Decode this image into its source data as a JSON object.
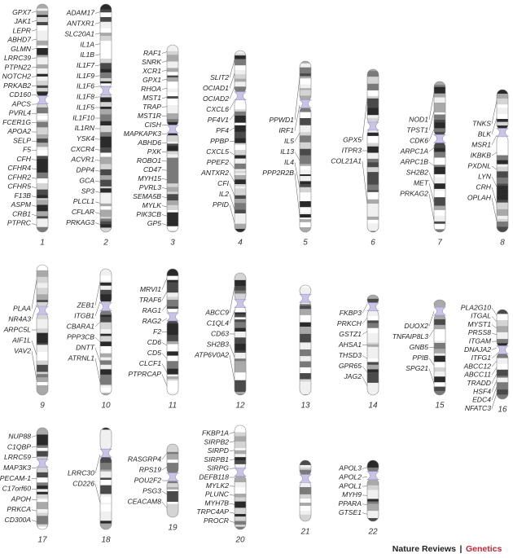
{
  "chromosomes": [
    {
      "label": "1",
      "genes": [
        "GPX7",
        "JAK1",
        "LEPR",
        "ABHD7",
        "GLMN",
        "LRRC39",
        "PTPN22",
        "NOTCH2",
        "PRKAB2",
        "CD160",
        "APCS",
        "PVRL4",
        "FCER1G",
        "APOA2",
        "SELP",
        "F5",
        "CFH",
        "CFHR4",
        "CFHR2",
        "CFHR5",
        "F13B",
        "ASPM",
        "CRB1",
        "PTPRC"
      ]
    },
    {
      "label": "2",
      "genes": [
        "ADAM17",
        "ANTXR1",
        "SLC20A1",
        "IL1A",
        "IL1B",
        "IL1F7",
        "IL1F9",
        "IL1F6",
        "IL1F8",
        "IL1F5",
        "IL1F10",
        "IL1RN",
        "YSK4",
        "CXCR4",
        "ACVR1",
        "DPP4",
        "GCA",
        "SP3",
        "PLCL1",
        "CFLAR",
        "PRKAG3"
      ]
    },
    {
      "label": "3",
      "genes": [
        "RAF1",
        "SNRK",
        "XCR1",
        "GPX1",
        "RHOA",
        "MST1",
        "TRAP",
        "MST1R",
        "CISH",
        "MAPKAPK3",
        "ABHD6",
        "PXK",
        "ROBO1",
        "CD47",
        "MYH15",
        "PVRL3",
        "SEMA5B",
        "MYLK",
        "PIK3CB",
        "GP5"
      ]
    },
    {
      "label": "4",
      "genes": [
        "SLIT2",
        "OCIAD1",
        "OCIAD2",
        "CXCL6",
        "PF4V1",
        "PF4",
        "PPBP",
        "CXCL5",
        "PPEF2",
        "ANTXR2",
        "CFI",
        "IL2",
        "PPID"
      ]
    },
    {
      "label": "5",
      "genes": [
        "PPWD1",
        "IRF1",
        "IL5",
        "IL13",
        "IL4",
        "PPP2R2B"
      ]
    },
    {
      "label": "6",
      "genes": [
        "GPX5",
        "ITPR3",
        "COL21A1"
      ]
    },
    {
      "label": "7",
      "genes": [
        "NOD1",
        "TPST1",
        "CDK6",
        "ARPC1A",
        "ARPC1B",
        "SH2B2",
        "MET",
        "PRKAG2"
      ]
    },
    {
      "label": "8",
      "genes": [
        "TNKS",
        "BLK",
        "MSR1",
        "IKBKB",
        "PXDNL",
        "LYN",
        "CRH",
        "OPLAH"
      ]
    },
    {
      "label": "9",
      "genes": [
        "PLAA",
        "NR4A3",
        "ARPC5L",
        "AIF1L",
        "VAV2"
      ]
    },
    {
      "label": "10",
      "genes": [
        "ZEB1",
        "ITGB1",
        "CBARA1",
        "PPP3CB",
        "DNTT",
        "ATRNL1"
      ]
    },
    {
      "label": "11",
      "genes": [
        "MRVI1",
        "TRAF6",
        "RAG1",
        "RAG2",
        "F2",
        "CD6",
        "CD5",
        "CLCF1",
        "PTPRCAP"
      ]
    },
    {
      "label": "12",
      "genes": [
        "ABCC9",
        "C1QL4",
        "CD63",
        "SH2B3",
        "ATP6V0A2"
      ]
    },
    {
      "label": "13",
      "genes": []
    },
    {
      "label": "14",
      "genes": [
        "FKBP3",
        "PRKCH",
        "GSTZ1",
        "AHSA1",
        "THSD3",
        "GPR65",
        "JAG2"
      ]
    },
    {
      "label": "15",
      "genes": [
        "DUOX2",
        "TNFAIP8L3",
        "GNB5",
        "PPIB",
        "SPG21"
      ]
    },
    {
      "label": "16",
      "genes": [
        "PLA2G10",
        "ITGAL",
        "MYST1",
        "PRSS8",
        "ITGAM",
        "DNAJA2",
        "ITFG1",
        "ABCC12",
        "ABCC11",
        "TRADD",
        "HSF4",
        "EDC4",
        "NFATC3"
      ]
    },
    {
      "label": "17",
      "genes": [
        "NUP88",
        "C1QBP",
        "LRRC59",
        "MAP3K3",
        "PECAM-1",
        "C17orf60",
        "APOH",
        "PRKCA",
        "CD300A"
      ]
    },
    {
      "label": "18",
      "genes": [
        "LRRC30",
        "CD226"
      ]
    },
    {
      "label": "19",
      "genes": [
        "RASGRP4",
        "RPS19",
        "POU2F2",
        "PSG3",
        "CEACAM8"
      ]
    },
    {
      "label": "20",
      "genes": [
        "FKBP1A",
        "SIRPB2",
        "SIRPD",
        "SIRPB1",
        "SIRPG",
        "DEFB118",
        "MYLK2",
        "PLUNC",
        "MYH7B",
        "TRPC4AP",
        "PROCR"
      ]
    },
    {
      "label": "21",
      "genes": []
    },
    {
      "label": "22",
      "genes": [
        "APOL3",
        "APOL2",
        "APOL1",
        "MYH9",
        "PPARA",
        "GTSE1"
      ]
    }
  ],
  "footer": {
    "publisher": "Nature Reviews",
    "separator": "|",
    "journal": "Genetics"
  }
}
